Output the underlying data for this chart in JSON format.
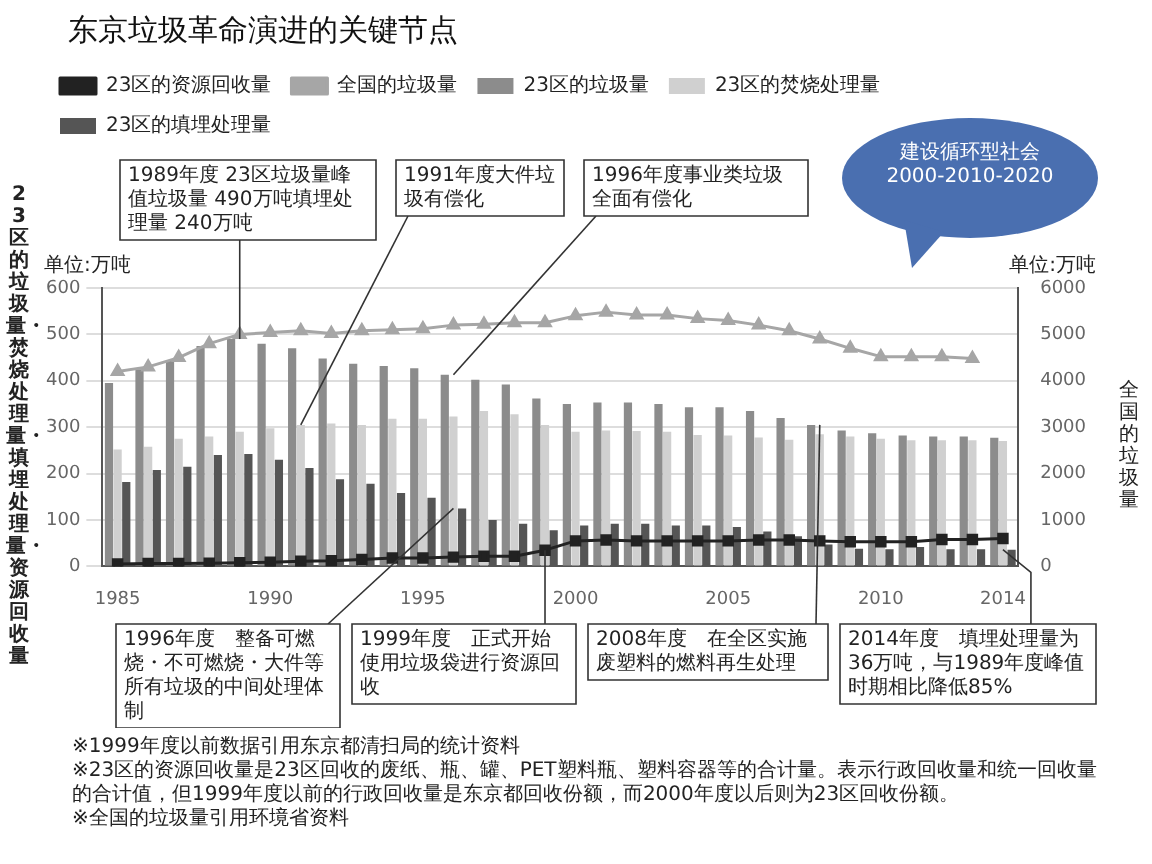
{
  "chart_data": {
    "type": "bar",
    "title": "东京垃圾革命演进的关键节点",
    "ylabel": "23区的垃圾量・焚烧处理量・填埋处理量・资源回收量",
    "y2label": "全国的垃圾量",
    "x": [
      1985,
      1986,
      1987,
      1988,
      1989,
      1990,
      1991,
      1992,
      1993,
      1994,
      1995,
      1996,
      1997,
      1998,
      1999,
      2000,
      2001,
      2002,
      2003,
      2004,
      2005,
      2006,
      2007,
      2008,
      2009,
      2010,
      2011,
      2012,
      2013,
      2014
    ],
    "xlim": [
      1984.5,
      2014.5
    ],
    "xticks": [
      1985,
      1990,
      1995,
      2000,
      2005,
      2010,
      2014
    ],
    "ylim": [
      0,
      600
    ],
    "yticks": [
      0,
      100,
      200,
      300,
      400,
      500,
      600
    ],
    "y2lim": [
      0,
      6000
    ],
    "y2ticks": [
      0,
      1000,
      2000,
      3000,
      4000,
      5000,
      6000
    ],
    "grid": "y",
    "legend": "top left",
    "series": [
      {
        "name": "23区的垃圾量",
        "color": "#8c8c8c",
        "values": [
          395,
          425,
          445,
          475,
          490,
          480,
          470,
          448,
          437,
          432,
          427,
          413,
          402,
          392,
          362,
          350,
          353,
          353,
          350,
          343,
          343,
          335,
          320,
          305,
          293,
          287,
          282,
          280,
          280,
          277
        ]
      },
      {
        "name": "23区的焚烧处理量",
        "color": "#d0d0d0",
        "values": [
          252,
          258,
          275,
          280,
          290,
          298,
          305,
          308,
          305,
          318,
          318,
          323,
          335,
          328,
          305,
          290,
          293,
          292,
          290,
          283,
          282,
          278,
          273,
          285,
          280,
          275,
          272,
          272,
          272,
          270
        ]
      },
      {
        "name": "23区的填埋处理量",
        "color": "#555555",
        "values": [
          182,
          208,
          215,
          240,
          242,
          230,
          212,
          188,
          178,
          158,
          148,
          125,
          100,
          92,
          78,
          88,
          92,
          92,
          88,
          88,
          85,
          75,
          65,
          47,
          38,
          37,
          42,
          37,
          37,
          36
        ]
      },
      {
        "name": "23区的资源回收量",
        "type": "line",
        "color": "#222222",
        "marker": "square",
        "values": [
          5,
          6,
          6,
          7,
          8,
          9,
          11,
          12,
          15,
          18,
          18,
          20,
          22,
          22,
          35,
          55,
          57,
          55,
          55,
          55,
          55,
          57,
          57,
          55,
          53,
          53,
          53,
          58,
          58,
          60
        ]
      },
      {
        "name": "全国的垃圾量",
        "type": "line",
        "axis": "y2",
        "color": "#a6a6a6",
        "marker": "triangle",
        "values": [
          4200,
          4300,
          4500,
          4800,
          5000,
          5040,
          5080,
          5020,
          5080,
          5100,
          5120,
          5200,
          5220,
          5250,
          5250,
          5400,
          5480,
          5420,
          5420,
          5340,
          5300,
          5200,
          5080,
          4900,
          4700,
          4520,
          4520,
          4520,
          4480,
          null
        ]
      }
    ],
    "annotations": [
      {
        "text": "1989年度 23区垃圾量峰值垃圾量 490万吨填埋处理量 240万吨",
        "x": 1989,
        "y": 490
      },
      {
        "text": "1991年度大件垃圾有偿化",
        "x": 1991,
        "y": 305
      },
      {
        "text": "1996年度事业类垃圾全面有偿化",
        "x": 1996,
        "y": 413
      },
      {
        "text": "1996年度　整备可燃烧・不可燃烧・大件等所有垃圾的中间处理体制",
        "x": 1996,
        "y": 125
      },
      {
        "text": "1999年度　正式开始使用垃圾袋进行资源回收",
        "x": 1999,
        "y": 35
      },
      {
        "text": "2008年度　在全区实施废塑料的燃料再生处理",
        "x": 2008,
        "y": 305
      },
      {
        "text": "2014年度　填埋处理量为36万吨，与1989年度峰值时期相比降低85%",
        "x": 2014,
        "y": 36
      },
      "单位:万吨",
      "单位:万吨",
      "建设循环型社会2000-2010-2020",
      "※1999年度以前数据引用东京都清扫局的统计资料",
      "※23区的资源回收量是23区回收的废纸、瓶、罐、PET塑料瓶、塑料容器等的合计量。表示行政回收量和统一回收量的合计值，但1999年度以前的行政回收量是东京都回收份额，而2000年度以后则为23区回收份额。",
      "※全国的垃圾量引用环境省资料"
    ]
  }
}
